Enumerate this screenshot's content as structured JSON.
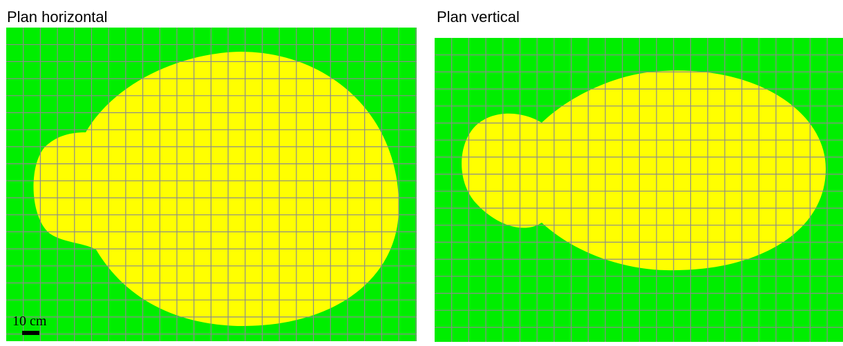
{
  "panels": [
    {
      "title": "Plan horizontal",
      "scale_label": "10 cm"
    },
    {
      "title": "Plan vertical"
    }
  ],
  "colors": {
    "background": "#00ee00",
    "shape": "#ffff00",
    "grid": "#8c8c8c",
    "scale_bar": "#000000"
  }
}
